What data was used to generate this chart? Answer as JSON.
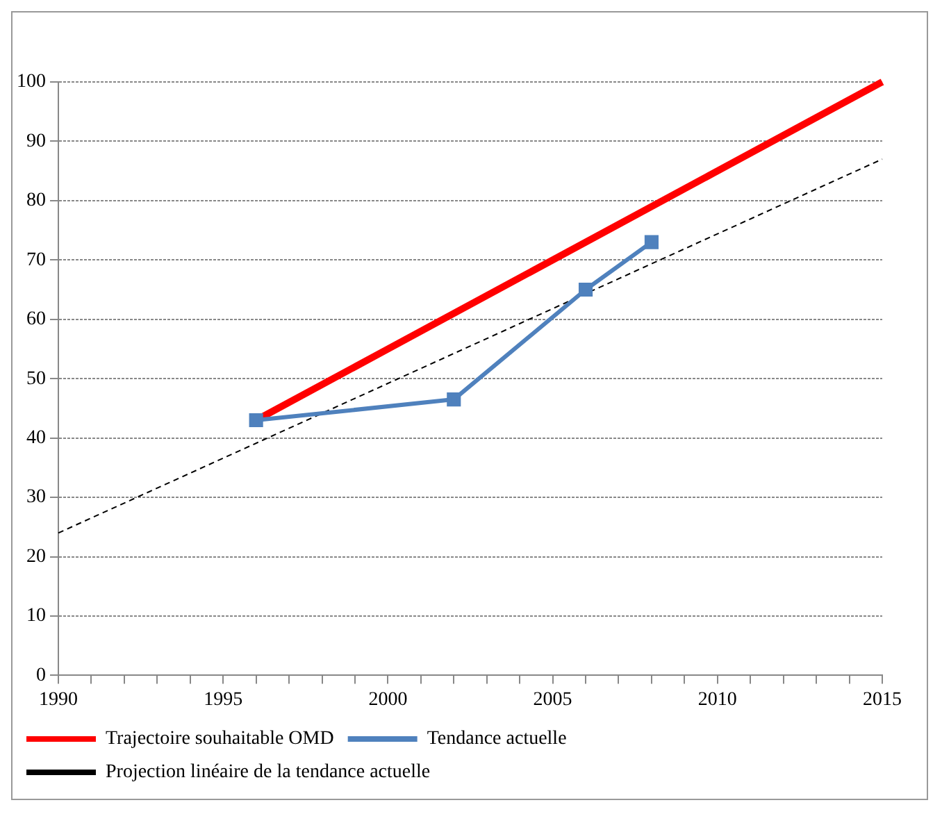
{
  "chart_data": {
    "type": "line",
    "xlim": [
      1990,
      2015
    ],
    "xticks": [
      1990,
      {
        "value": 1991,
        "label": null
      },
      {
        "value": 1992,
        "label": null
      },
      {
        "value": 1993,
        "label": null
      },
      {
        "value": 1994,
        "label": null
      },
      1995,
      {
        "value": 1996,
        "label": null
      },
      {
        "value": 1997,
        "label": null
      },
      {
        "value": 1998,
        "label": null
      },
      {
        "value": 1999,
        "label": null
      },
      2000,
      {
        "value": 2001,
        "label": null
      },
      {
        "value": 2002,
        "label": null
      },
      {
        "value": 2003,
        "label": null
      },
      {
        "value": 2004,
        "label": null
      },
      2005,
      {
        "value": 2006,
        "label": null
      },
      {
        "value": 2007,
        "label": null
      },
      {
        "value": 2008,
        "label": null
      },
      {
        "value": 2009,
        "label": null
      },
      2010,
      {
        "value": 2011,
        "label": null
      },
      {
        "value": 2012,
        "label": null
      },
      {
        "value": 2013,
        "label": null
      },
      {
        "value": 2014,
        "label": null
      },
      2015
    ],
    "ylim": [
      0,
      100
    ],
    "yticks": [
      0,
      10,
      20,
      30,
      40,
      50,
      60,
      70,
      80,
      90,
      100
    ],
    "grid": "y",
    "legend": "bottom",
    "series": [
      {
        "name": "Trajectoire souhaitable OMD",
        "color": "#ff0000",
        "x": [
          1996,
          2015
        ],
        "values": [
          43,
          100
        ],
        "marker": "none",
        "line_style": "solid"
      },
      {
        "name": "Tendance actuelle",
        "color": "#4f81bd",
        "x": [
          1996,
          2002,
          2006,
          2008
        ],
        "values": [
          43,
          46.5,
          65,
          73
        ],
        "marker": "square",
        "line_style": "solid"
      },
      {
        "name": "Projection linéaire de la tendance actuelle",
        "color": "#000000",
        "x": [
          1990,
          2015
        ],
        "values": [
          24,
          87
        ],
        "marker": "none",
        "line_style": "dashed"
      }
    ]
  }
}
